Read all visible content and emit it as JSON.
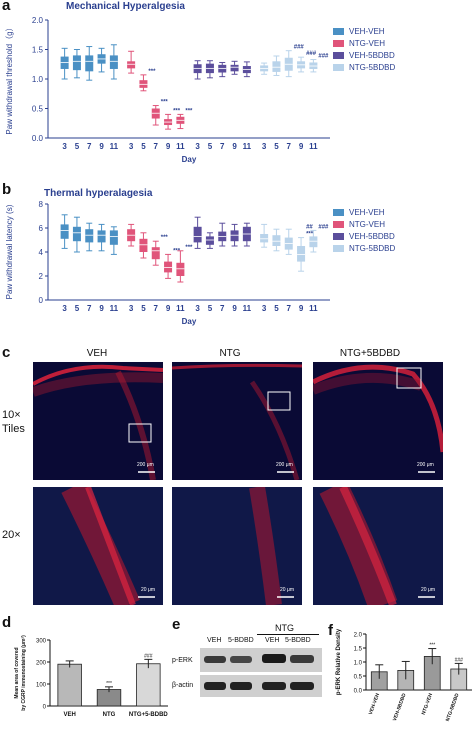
{
  "panels": {
    "a": {
      "label": "a",
      "title": "Mechanical Hyperalgesia"
    },
    "b": {
      "label": "b",
      "title": "Thermal hyperalagesia"
    },
    "c": {
      "label": "c"
    },
    "d": {
      "label": "d"
    },
    "e": {
      "label": "e"
    },
    "f": {
      "label": "f"
    }
  },
  "legend": [
    {
      "name": "VEH-VEH",
      "color": "#4a90c4"
    },
    {
      "name": "NTG-VEH",
      "color": "#e0547a"
    },
    {
      "name": "VEH-5BDBD",
      "color": "#5b4e9c"
    },
    {
      "name": "NTG-5BDBD",
      "color": "#b9d3ea"
    }
  ],
  "microscopy": {
    "columns": [
      "VEH",
      "NTG",
      "NTG+5BDBD"
    ],
    "rows": [
      "10×\nTiles",
      "20×"
    ],
    "scale_10x": "200 μm",
    "scale_20x": "20 μm"
  },
  "western": {
    "group_label": "NTG",
    "lanes": [
      "VEH",
      "5-BDBD",
      "VEH",
      "5-BDBD"
    ],
    "bands": [
      "p-ERK",
      "β-actin"
    ]
  },
  "chart_data": [
    {
      "id": "a",
      "type": "box",
      "title": "Mechanical Hyperalgesia",
      "xlabel": "Day",
      "ylabel": "Paw withdrawal threshold（g）",
      "ylim": [
        0.0,
        2.0
      ],
      "yticks": [
        "0.0",
        "0.5",
        "1.0",
        "1.5",
        "2.0"
      ],
      "days": [
        "3",
        "5",
        "7",
        "9",
        "11"
      ],
      "series": [
        {
          "name": "VEH-VEH",
          "color": "#4a90c4",
          "boxes": [
            [
              1.0,
              1.17,
              1.28,
              1.38,
              1.52
            ],
            [
              1.02,
              1.15,
              1.3,
              1.4,
              1.5
            ],
            [
              0.98,
              1.13,
              1.3,
              1.4,
              1.55
            ],
            [
              1.12,
              1.26,
              1.34,
              1.42,
              1.52
            ],
            [
              1.0,
              1.17,
              1.3,
              1.4,
              1.58
            ]
          ],
          "marks": [
            "",
            "",
            "",
            "",
            ""
          ]
        },
        {
          "name": "NTG-VEH",
          "color": "#e0547a",
          "boxes": [
            [
              1.1,
              1.18,
              1.25,
              1.3,
              1.47
            ],
            [
              0.8,
              0.85,
              0.91,
              0.98,
              1.07
            ],
            [
              0.22,
              0.33,
              0.42,
              0.5,
              0.55
            ],
            [
              0.15,
              0.22,
              0.27,
              0.32,
              0.4
            ],
            [
              0.16,
              0.24,
              0.3,
              0.36,
              0.4
            ]
          ],
          "marks": [
            "",
            "***",
            "***",
            "***",
            "***"
          ]
        },
        {
          "name": "VEH-5BDBD",
          "color": "#5b4e9c",
          "boxes": [
            [
              1.0,
              1.1,
              1.18,
              1.25,
              1.31
            ],
            [
              1.02,
              1.1,
              1.18,
              1.26,
              1.31
            ],
            [
              1.04,
              1.11,
              1.18,
              1.24,
              1.28
            ],
            [
              1.08,
              1.13,
              1.2,
              1.24,
              1.3
            ],
            [
              1.04,
              1.1,
              1.16,
              1.22,
              1.29
            ]
          ],
          "marks": [
            "",
            "",
            "",
            "",
            ""
          ]
        },
        {
          "name": "NTG-5BDBD",
          "color": "#b9d3ea",
          "boxes": [
            [
              1.08,
              1.13,
              1.18,
              1.23,
              1.27
            ],
            [
              1.06,
              1.12,
              1.2,
              1.3,
              1.39
            ],
            [
              1.04,
              1.14,
              1.25,
              1.36,
              1.48
            ],
            [
              1.12,
              1.18,
              1.24,
              1.3,
              1.37
            ],
            [
              1.12,
              1.17,
              1.22,
              1.28,
              1.33
            ]
          ],
          "marks": [
            "",
            "",
            "###",
            "###",
            "###"
          ]
        }
      ]
    },
    {
      "id": "b",
      "type": "box",
      "title": "Thermal hyperalagesia",
      "xlabel": "Day",
      "ylabel": "Paw withdrawal latency (s)",
      "ylim": [
        0,
        8
      ],
      "yticks": [
        "0",
        "2",
        "4",
        "6",
        "8"
      ],
      "days": [
        "3",
        "5",
        "7",
        "9",
        "11"
      ],
      "series": [
        {
          "name": "VEH-VEH",
          "color": "#4a90c4",
          "boxes": [
            [
              4.3,
              5.1,
              5.8,
              6.3,
              7.1
            ],
            [
              4.0,
              4.9,
              5.6,
              6.1,
              6.9
            ],
            [
              4.1,
              4.8,
              5.4,
              5.9,
              6.4
            ],
            [
              4.1,
              4.8,
              5.4,
              5.8,
              6.3
            ],
            [
              3.8,
              4.6,
              5.3,
              5.8,
              6.1
            ]
          ],
          "marks": [
            "",
            "",
            "",
            "",
            ""
          ]
        },
        {
          "name": "NTG-VEH",
          "color": "#e0547a",
          "boxes": [
            [
              4.5,
              4.9,
              5.4,
              5.9,
              6.3
            ],
            [
              3.5,
              4.0,
              4.6,
              5.1,
              5.6
            ],
            [
              2.9,
              3.4,
              4.1,
              4.4,
              4.9
            ],
            [
              1.8,
              2.3,
              2.7,
              3.2,
              3.8
            ],
            [
              1.5,
              2.0,
              2.6,
              3.1,
              4.1
            ]
          ],
          "marks": [
            "",
            "",
            "***",
            "***",
            "***"
          ]
        },
        {
          "name": "VEH-5BDBD",
          "color": "#5b4e9c",
          "boxes": [
            [
              4.3,
              4.8,
              5.3,
              6.1,
              6.9
            ],
            [
              4.3,
              4.6,
              5.0,
              5.3,
              5.6
            ],
            [
              4.5,
              4.9,
              5.3,
              5.7,
              6.4
            ],
            [
              4.5,
              4.9,
              5.4,
              5.8,
              6.3
            ],
            [
              4.5,
              4.9,
              5.5,
              6.1,
              6.4
            ]
          ],
          "marks": [
            "",
            "",
            "",
            "",
            ""
          ]
        },
        {
          "name": "NTG-5BDBD",
          "color": "#b9d3ea",
          "boxes": [
            [
              4.4,
              4.8,
              5.1,
              5.5,
              6.3
            ],
            [
              4.1,
              4.5,
              4.9,
              5.4,
              5.9
            ],
            [
              3.8,
              4.2,
              4.7,
              5.2,
              5.9
            ],
            [
              2.4,
              3.2,
              3.8,
              4.5,
              5.2
            ],
            [
              4.0,
              4.4,
              4.9,
              5.3,
              5.8
            ]
          ],
          "marks": [
            "",
            "",
            "",
            "##\n***",
            "###"
          ]
        }
      ]
    },
    {
      "id": "d",
      "type": "bar",
      "ylabel": "Mean area of covered\nby CGRP immunostaining (μm²)",
      "ylim": [
        0,
        300
      ],
      "yticks": [
        "0",
        "100",
        "200",
        "300"
      ],
      "categories": [
        "VEH",
        "NTG",
        "NTG+5-BDBD"
      ],
      "values": [
        190,
        75,
        192
      ],
      "errors": [
        15,
        12,
        20
      ],
      "marks": [
        "",
        "***",
        "###"
      ]
    },
    {
      "id": "f",
      "type": "bar",
      "ylabel": "p-ERK Relative Density",
      "ylim": [
        0.0,
        2.0
      ],
      "yticks": [
        "0.0",
        "0.5",
        "1.0",
        "1.5",
        "2.0"
      ],
      "categories": [
        "VEH-VEH",
        "VEH-5BDBD",
        "NTG-VEH",
        "NTG-5BDBD"
      ],
      "values": [
        0.65,
        0.7,
        1.2,
        0.75
      ],
      "errors": [
        0.25,
        0.32,
        0.28,
        0.2
      ],
      "marks": [
        "",
        "",
        "***",
        "###"
      ]
    }
  ]
}
